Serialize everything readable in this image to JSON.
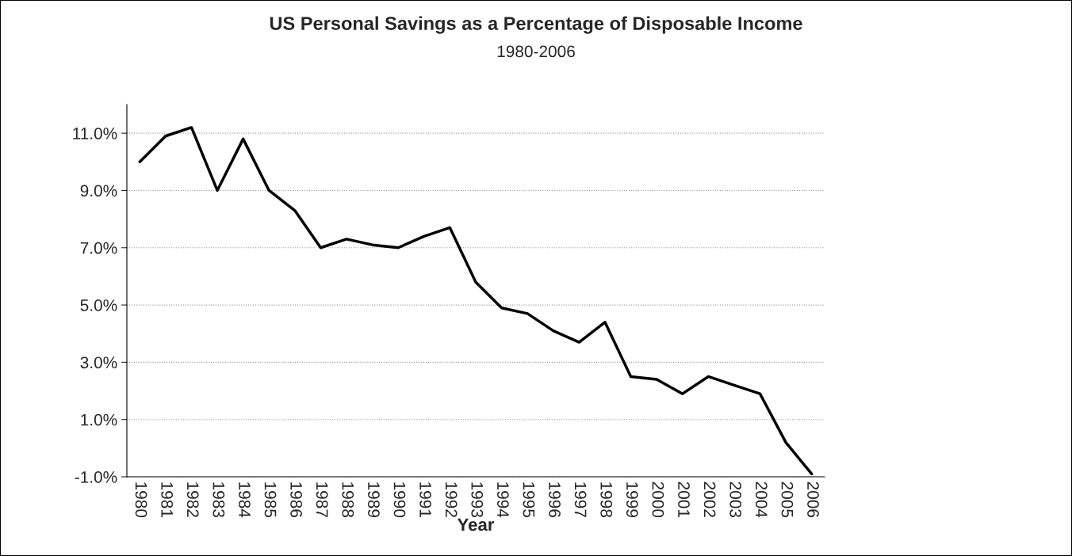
{
  "chart_data": {
    "type": "line",
    "title": "US Personal Savings as a Percentage of Disposable Income",
    "subtitle": "1980-2006",
    "xlabel": "Year",
    "categories": [
      "1980",
      "1981",
      "1982",
      "1983",
      "1984",
      "1985",
      "1986",
      "1987",
      "1988",
      "1989",
      "1990",
      "1991",
      "1992",
      "1993",
      "1994",
      "1995",
      "1996",
      "1997",
      "1998",
      "1999",
      "2000",
      "2001",
      "2002",
      "2003",
      "2004",
      "2005",
      "2006"
    ],
    "series": [
      {
        "color": "#000000",
        "values": [
          10.0,
          10.9,
          11.2,
          9.0,
          10.8,
          9.0,
          8.3,
          7.0,
          7.3,
          7.1,
          7.0,
          7.4,
          7.7,
          5.8,
          4.9,
          4.7,
          4.1,
          3.7,
          4.4,
          2.5,
          2.4,
          1.9,
          2.5,
          2.2,
          1.9,
          0.2,
          -0.9
        ]
      }
    ],
    "ylim": [
      -1,
      12
    ],
    "yticks": [
      {
        "value": -1,
        "label": "-1.0%"
      },
      {
        "value": 1,
        "label": "1.0%"
      },
      {
        "value": 3,
        "label": "3.0%"
      },
      {
        "value": 5,
        "label": "5.0%"
      },
      {
        "value": 7,
        "label": "7.0%"
      },
      {
        "value": 9,
        "label": "9.0%"
      },
      {
        "value": 11,
        "label": "11.0%"
      }
    ],
    "grid": "y",
    "line_style": "solid",
    "marker": "none"
  }
}
